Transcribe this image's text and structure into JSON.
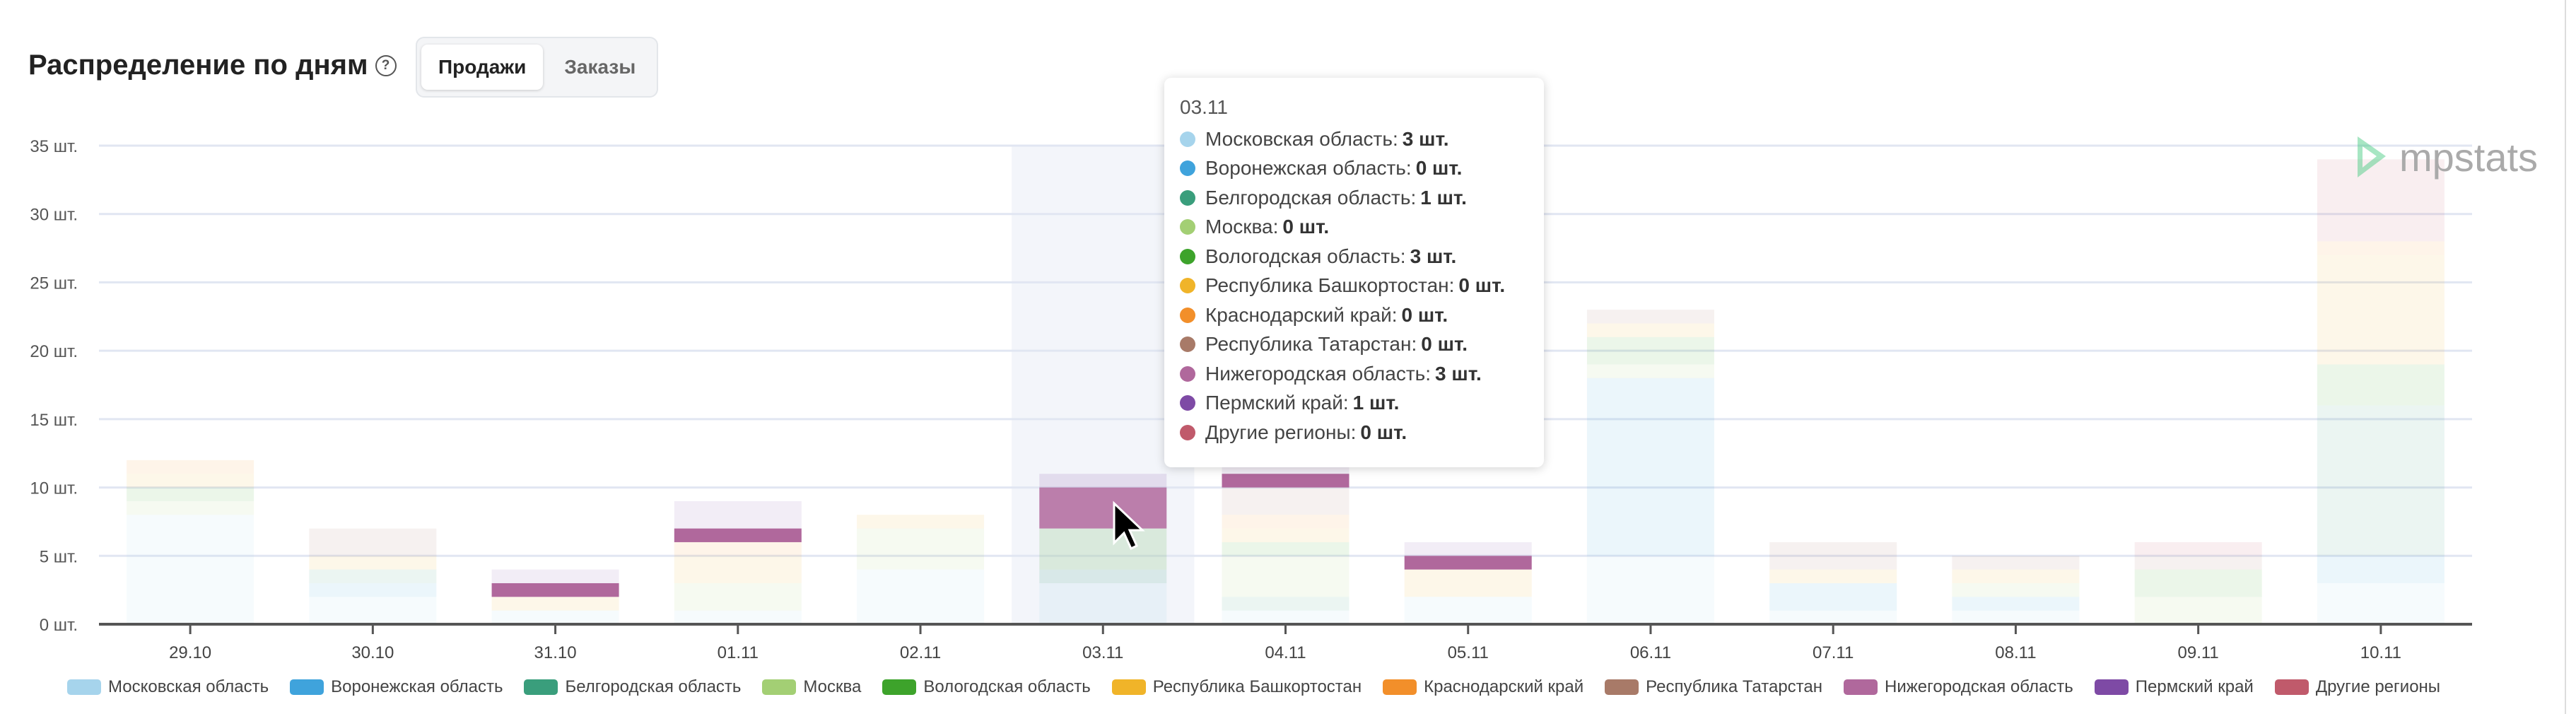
{
  "header": {
    "title": "Распределение по дням",
    "help_icon": "question-circle-icon",
    "tabs": [
      {
        "label": "Продажи",
        "active": true
      },
      {
        "label": "Заказы",
        "active": false
      }
    ]
  },
  "logo": {
    "text": "mpstats",
    "color": "#3cc77a"
  },
  "chart_data": {
    "type": "bar",
    "stacked": true,
    "categories": [
      "29.10",
      "30.10",
      "31.10",
      "01.11",
      "02.11",
      "03.11",
      "04.11",
      "05.11",
      "06.11",
      "07.11",
      "08.11",
      "09.11",
      "10.11"
    ],
    "yticks": [
      "0 шт.",
      "5 шт.",
      "10 шт.",
      "15 шт.",
      "20 шт.",
      "25 шт.",
      "30 шт.",
      "35 шт."
    ],
    "ylim": [
      0,
      35
    ],
    "grid": true,
    "legend_position": "bottom",
    "highlighted_category": "03.11",
    "highlighted_series": "Нижегородская область",
    "series": [
      {
        "name": "Московская область",
        "color": "#a6d4ec",
        "values": [
          8,
          2,
          1,
          1,
          4,
          3,
          1,
          2,
          5,
          1,
          1,
          0,
          3
        ]
      },
      {
        "name": "Воронежская область",
        "color": "#3fa3dc",
        "values": [
          0,
          1,
          0,
          0,
          0,
          0,
          0,
          0,
          13,
          2,
          1,
          0,
          2
        ]
      },
      {
        "name": "Белгородская область",
        "color": "#3a9e7c",
        "values": [
          0,
          1,
          0,
          0,
          0,
          1,
          1,
          0,
          0,
          0,
          0,
          0,
          11
        ]
      },
      {
        "name": "Москва",
        "color": "#a3cf74",
        "values": [
          1,
          0,
          0,
          2,
          3,
          0,
          3,
          0,
          1,
          0,
          1,
          2,
          0
        ]
      },
      {
        "name": "Вологодская область",
        "color": "#3da32b",
        "values": [
          1,
          0,
          0,
          0,
          0,
          3,
          1,
          0,
          2,
          0,
          0,
          2,
          3
        ]
      },
      {
        "name": "Республика Башкортостан",
        "color": "#f0b429",
        "values": [
          1,
          1,
          1,
          2,
          1,
          0,
          1,
          2,
          1,
          1,
          1,
          0,
          8
        ]
      },
      {
        "name": "Краснодарский край",
        "color": "#f28f2a",
        "values": [
          1,
          0,
          0,
          1,
          0,
          0,
          1,
          0,
          0,
          0,
          0,
          0,
          1
        ]
      },
      {
        "name": "Республика Татарстан",
        "color": "#a87a68",
        "values": [
          0,
          2,
          0,
          0,
          0,
          0,
          2,
          0,
          1,
          2,
          1,
          1,
          0
        ]
      },
      {
        "name": "Нижегородская область",
        "color": "#b0689c",
        "values": [
          0,
          0,
          1,
          1,
          0,
          3,
          1,
          1,
          0,
          0,
          0,
          0,
          0
        ]
      },
      {
        "name": "Пермский край",
        "color": "#7e4aa5",
        "values": [
          0,
          0,
          1,
          2,
          0,
          1,
          1,
          1,
          0,
          0,
          0,
          0,
          0
        ]
      },
      {
        "name": "Другие регионы",
        "color": "#c05a6b",
        "values": [
          0,
          0,
          0,
          0,
          0,
          0,
          0,
          0,
          0,
          0,
          0,
          1,
          6
        ]
      }
    ]
  },
  "tooltip": {
    "date": "03.11",
    "rows": [
      {
        "label": "Московская область:",
        "value": "3 шт."
      },
      {
        "label": "Воронежская область:",
        "value": "0 шт."
      },
      {
        "label": "Белгородская область:",
        "value": "1 шт."
      },
      {
        "label": "Москва:",
        "value": "0 шт."
      },
      {
        "label": "Вологодская область:",
        "value": "3 шт."
      },
      {
        "label": "Республика Башкортостан:",
        "value": "0 шт."
      },
      {
        "label": "Краснодарский край:",
        "value": "0 шт."
      },
      {
        "label": "Республика Татарстан:",
        "value": "0 шт."
      },
      {
        "label": "Нижегородская область:",
        "value": "3 шт."
      },
      {
        "label": "Пермский край:",
        "value": "1 шт."
      },
      {
        "label": "Другие регионы:",
        "value": "0 шт."
      }
    ]
  }
}
